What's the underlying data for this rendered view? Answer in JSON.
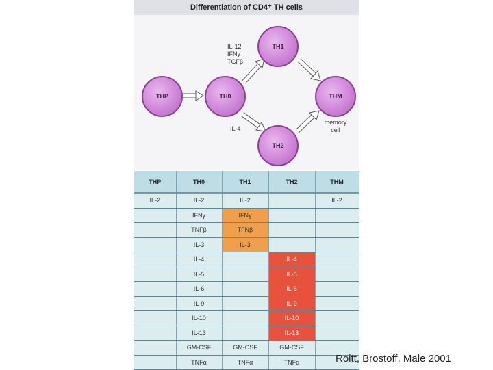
{
  "title": "Differentiation of CD4⁺ TH cells",
  "cells": {
    "thp": "THP",
    "th0": "TH0",
    "th1": "TH1",
    "th2": "TH2",
    "thm": "THM"
  },
  "labels": {
    "to_th1": [
      "IL-12",
      "IFNγ",
      "TGFβ"
    ],
    "to_th2": "IL-4",
    "memory": [
      "memory",
      "cell"
    ]
  },
  "table": {
    "headers": [
      "THP",
      "TH0",
      "TH1",
      "TH2",
      "THM"
    ],
    "rows": [
      [
        "IL-2",
        "IL-2",
        "IL-2",
        "",
        "IL-2"
      ],
      [
        "",
        "IFNγ",
        "IFNγ",
        "",
        ""
      ],
      [
        "",
        "TNFβ",
        "TFNβ",
        "",
        ""
      ],
      [
        "",
        "IL-3",
        "IL-3",
        "",
        ""
      ],
      [
        "",
        "IL-4",
        "",
        "IL-4",
        ""
      ],
      [
        "",
        "IL-5",
        "",
        "IL-5",
        ""
      ],
      [
        "",
        "IL-6",
        "",
        "IL-6",
        ""
      ],
      [
        "",
        "IL-9",
        "",
        "IL-9",
        ""
      ],
      [
        "",
        "IL-10",
        "",
        "IL-10",
        ""
      ],
      [
        "",
        "IL-13",
        "",
        "IL-13",
        ""
      ],
      [
        "",
        "GM-CSF",
        "GM-CSF",
        "GM-CSF",
        ""
      ],
      [
        "",
        "TNFα",
        "TNFα",
        "TNFα",
        ""
      ]
    ],
    "highlight_th1_color": "#f0a04c",
    "highlight_th2_color": "#e8513d"
  },
  "citation": "Roitt, Brostoff, Male 2001"
}
